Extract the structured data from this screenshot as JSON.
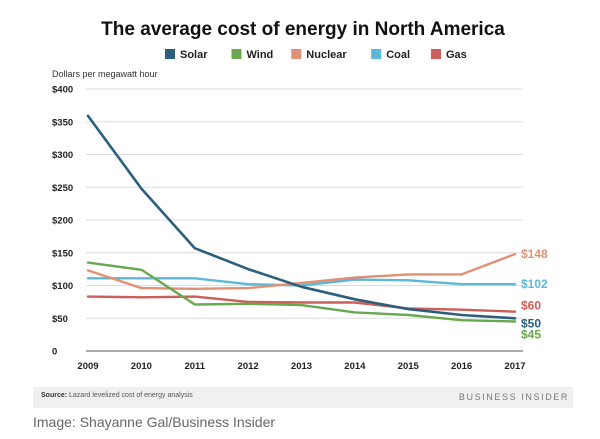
{
  "chart_data": {
    "type": "line",
    "title": "The average cost of energy in North America",
    "ylabel": "Dollars per megawatt hour",
    "xlabel": "",
    "x": [
      2009,
      2010,
      2011,
      2012,
      2013,
      2014,
      2015,
      2016,
      2017
    ],
    "ylim": [
      0,
      400
    ],
    "yticks": [
      0,
      50,
      100,
      150,
      200,
      250,
      300,
      350,
      400
    ],
    "ytick_labels": [
      "0",
      "$50",
      "$100",
      "$150",
      "$200",
      "$250",
      "$300",
      "$350",
      "$400"
    ],
    "grid": true,
    "legend_position": "top",
    "series": [
      {
        "name": "Solar",
        "color": "#2b5f7c",
        "values": [
          359,
          248,
          157,
          125,
          98,
          79,
          64,
          55,
          50
        ],
        "end_label": "$50"
      },
      {
        "name": "Wind",
        "color": "#6aa84f",
        "values": [
          135,
          124,
          71,
          72,
          70,
          59,
          55,
          47,
          45
        ],
        "end_label": "$45"
      },
      {
        "name": "Nuclear",
        "color": "#e09074",
        "values": [
          123,
          96,
          95,
          96,
          104,
          112,
          117,
          117,
          148
        ],
        "end_label": "$148"
      },
      {
        "name": "Coal",
        "color": "#5bb8d9",
        "values": [
          111,
          111,
          111,
          102,
          100,
          109,
          108,
          102,
          102
        ],
        "end_label": "$102"
      },
      {
        "name": "Gas",
        "color": "#cc5f5a",
        "values": [
          83,
          82,
          83,
          75,
          74,
          74,
          65,
          63,
          60
        ],
        "end_label": "$60"
      }
    ]
  },
  "footer": {
    "source_label": "Source:",
    "source_text": "Lazard levelized cost of energy analysis",
    "brand": "BUSINESS INSIDER"
  },
  "caption": "Image: Shayanne Gal/Business Insider"
}
